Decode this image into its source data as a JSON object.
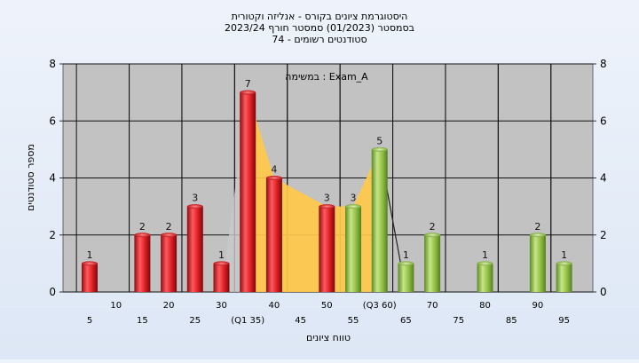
{
  "chart_data": {
    "type": "bar",
    "title_lines": [
      "היסטוגרמת ציונים בקורס - אנליזה וקטורית",
      "בסמסטר  (01/2023)  סמסטר חורף 2023/24",
      "סטודנטים רשומים - 74"
    ],
    "annotation": "במשימה : Exam_A",
    "xlabel": "טווח ציונים",
    "ylabel": "מספר סטודנטים",
    "ylim": [
      0,
      8
    ],
    "y_ticks": [
      0,
      2,
      4,
      6,
      8
    ],
    "grid": true,
    "x_tick_labels": [
      {
        "x": 5,
        "label": "5"
      },
      {
        "x": 10,
        "label": "10"
      },
      {
        "x": 15,
        "label": "15"
      },
      {
        "x": 20,
        "label": "20"
      },
      {
        "x": 25,
        "label": "25"
      },
      {
        "x": 30,
        "label": "30"
      },
      {
        "x": 35,
        "label": "(Q1 35)"
      },
      {
        "x": 40,
        "label": "40"
      },
      {
        "x": 45,
        "label": "45"
      },
      {
        "x": 50,
        "label": "50"
      },
      {
        "x": 55,
        "label": "55"
      },
      {
        "x": 60,
        "label": "(Q3 60)"
      },
      {
        "x": 65,
        "label": "65"
      },
      {
        "x": 70,
        "label": "70"
      },
      {
        "x": 75,
        "label": "75"
      },
      {
        "x": 80,
        "label": "80"
      },
      {
        "x": 85,
        "label": "85"
      },
      {
        "x": 90,
        "label": "90"
      },
      {
        "x": 95,
        "label": "95"
      }
    ],
    "bars": [
      {
        "x": 5,
        "value": 1,
        "color": "red"
      },
      {
        "x": 15,
        "value": 2,
        "color": "red"
      },
      {
        "x": 20,
        "value": 2,
        "color": "red"
      },
      {
        "x": 25,
        "value": 3,
        "color": "red"
      },
      {
        "x": 30,
        "value": 1,
        "color": "red"
      },
      {
        "x": 35,
        "value": 7,
        "color": "red"
      },
      {
        "x": 40,
        "value": 4,
        "color": "red"
      },
      {
        "x": 50,
        "value": 3,
        "color": "red"
      },
      {
        "x": 55,
        "value": 3,
        "color": "green"
      },
      {
        "x": 60,
        "value": 5,
        "color": "green"
      },
      {
        "x": 65,
        "value": 1,
        "color": "green"
      },
      {
        "x": 70,
        "value": 2,
        "color": "green"
      },
      {
        "x": 80,
        "value": 1,
        "color": "green"
      },
      {
        "x": 90,
        "value": 2,
        "color": "green"
      },
      {
        "x": 95,
        "value": 1,
        "color": "green"
      }
    ],
    "colors": {
      "red": "#e8262b",
      "green": "#96c24a",
      "area": "#ffc94a",
      "gray_area": "#c9c9c9",
      "plot_bg": "#c2c2c2"
    }
  }
}
